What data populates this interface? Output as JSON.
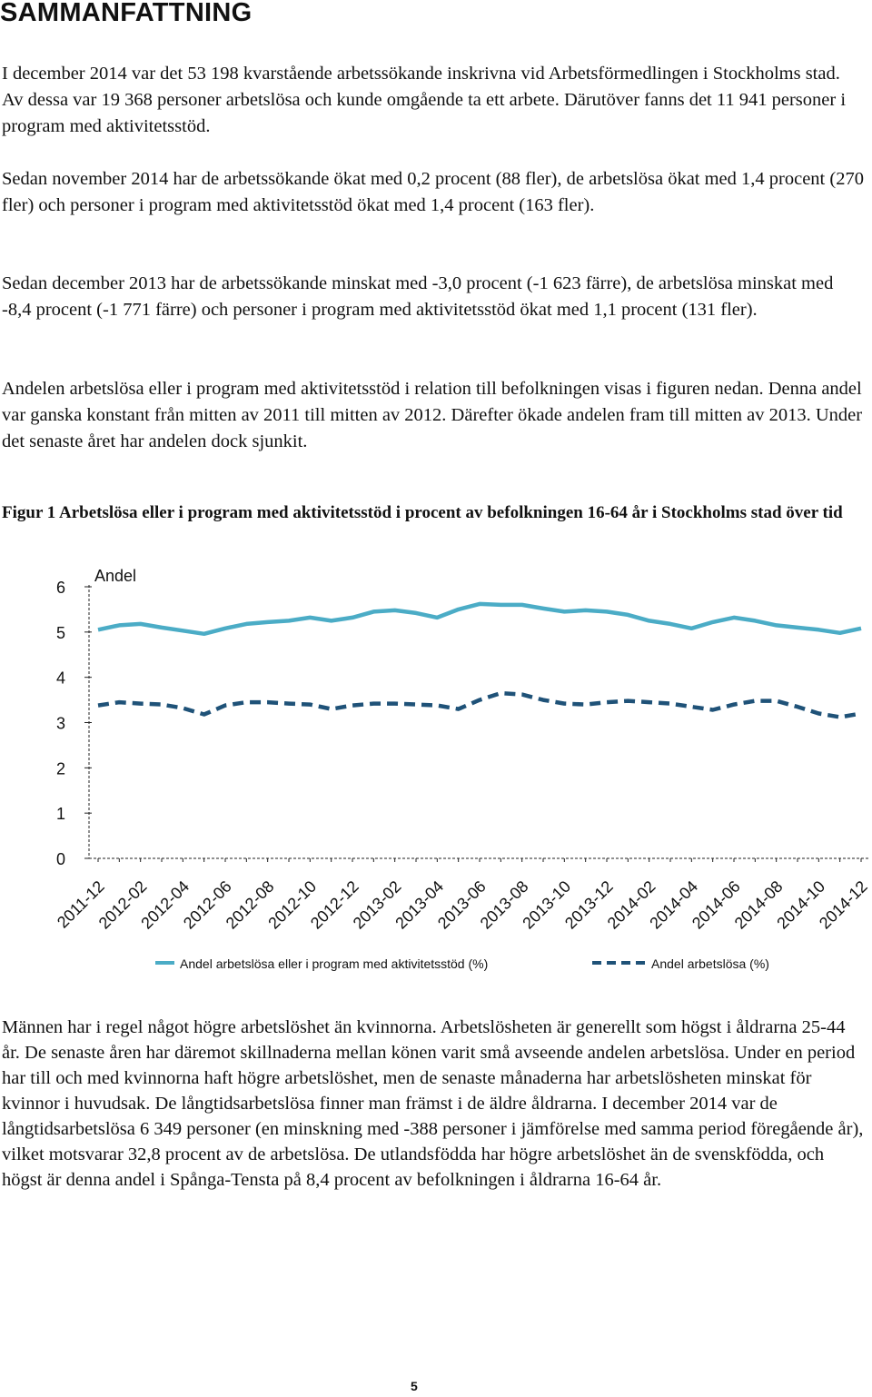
{
  "heading": "SAMMANFATTNING",
  "paragraphs": [
    "I december 2014 var det 53 198 kvarstående arbetssökande inskrivna vid Arbetsförmedlingen i Stockholms stad. Av dessa var 19 368 personer arbetslösa och kunde omgående ta ett arbete. Därutöver fanns det 11 941 personer i program med aktivitetsstöd.",
    "Sedan november 2014 har de arbetssökande ökat med 0,2 procent (88 fler), de arbetslösa ökat med 1,4 procent (270 fler) och personer i program med aktivitetsstöd ökat med 1,4 procent (163 fler).",
    "Sedan december 2013 har de arbetssökande minskat med -3,0 procent (-1 623 färre), de arbetslösa minskat med -8,4 procent (-1 771 färre) och personer i program med aktivitetsstöd ökat med 1,1 procent (131 fler).",
    "Andelen arbetslösa eller i program med aktivitetsstöd i relation till befolkningen visas i figuren nedan. Denna andel var ganska konstant från mitten av 2011 till mitten av 2012. Därefter ökade andelen fram till mitten av 2013. Under det senaste året har andelen dock sjunkit.",
    "Männen har i regel något högre arbetslöshet än kvinnorna. Arbetslösheten är generellt som högst i åldrarna 25-44 år. De senaste åren har däremot skillnaderna mellan könen varit små avseende andelen arbetslösa. Under en period har till och med kvinnorna haft högre arbetslöshet, men de senaste månaderna har arbetslösheten minskat för kvinnor i huvudsak. De långtidsarbetslösa finner man främst i de äldre åldrarna. I december 2014 var de långtidsarbetslösa 6 349 personer (en minskning med -388 personer i jämförelse med samma period föregående år), vilket motsvarar 32,8 procent av de arbetslösa. De utlandsfödda har högre arbetslöshet än de svenskfödda, och högst är denna andel i Spånga-Tensta på 8,4 procent av befolkningen i åldrarna 16-64 år."
  ],
  "figure_caption": "Figur 1 Arbetslösa eller i program med aktivitetsstöd i procent av befolkningen 16-64 år i Stockholms stad över tid",
  "page_number": "5",
  "chart_data": {
    "type": "line",
    "title": "",
    "xlabel": "",
    "ylabel": "Andel",
    "ylim": [
      0,
      6
    ],
    "yticks": [
      "0",
      "1",
      "2",
      "3",
      "4",
      "5",
      "6"
    ],
    "grid": false,
    "legend_position": "bottom",
    "x": [
      "2011-12",
      "2012-01",
      "2012-02",
      "2012-03",
      "2012-04",
      "2012-05",
      "2012-06",
      "2012-07",
      "2012-08",
      "2012-09",
      "2012-10",
      "2012-11",
      "2012-12",
      "2013-01",
      "2013-02",
      "2013-03",
      "2013-04",
      "2013-05",
      "2013-06",
      "2013-07",
      "2013-08",
      "2013-09",
      "2013-10",
      "2013-11",
      "2013-12",
      "2014-01",
      "2014-02",
      "2014-03",
      "2014-04",
      "2014-05",
      "2014-06",
      "2014-07",
      "2014-08",
      "2014-09",
      "2014-10",
      "2014-11",
      "2014-12"
    ],
    "xtick_labels": [
      "2011-12",
      "2012-02",
      "2012-04",
      "2012-06",
      "2012-08",
      "2012-10",
      "2012-12",
      "2013-02",
      "2013-04",
      "2013-06",
      "2013-08",
      "2013-10",
      "2013-12",
      "2014-02",
      "2014-04",
      "2014-06",
      "2014-08",
      "2014-10",
      "2014-12"
    ],
    "series": [
      {
        "name": "Andel arbetslösa eller i program med aktivitetsstöd (%)",
        "color": "#4bacc6",
        "style": "solid",
        "values": [
          5.05,
          5.15,
          5.18,
          5.1,
          5.03,
          4.96,
          5.08,
          5.18,
          5.22,
          5.25,
          5.32,
          5.25,
          5.32,
          5.45,
          5.48,
          5.42,
          5.32,
          5.5,
          5.62,
          5.6,
          5.6,
          5.52,
          5.45,
          5.48,
          5.45,
          5.38,
          5.25,
          5.18,
          5.08,
          5.22,
          5.32,
          5.25,
          5.15,
          5.1,
          5.05,
          4.98,
          5.08
        ]
      },
      {
        "name": "Andel arbetslösa (%)",
        "color": "#1f5278",
        "style": "dashed",
        "values": [
          3.38,
          3.45,
          3.42,
          3.4,
          3.32,
          3.18,
          3.38,
          3.45,
          3.45,
          3.42,
          3.4,
          3.3,
          3.38,
          3.42,
          3.42,
          3.4,
          3.38,
          3.3,
          3.5,
          3.65,
          3.62,
          3.5,
          3.42,
          3.4,
          3.45,
          3.48,
          3.45,
          3.42,
          3.35,
          3.28,
          3.4,
          3.48,
          3.48,
          3.35,
          3.2,
          3.12,
          3.2
        ]
      }
    ]
  }
}
